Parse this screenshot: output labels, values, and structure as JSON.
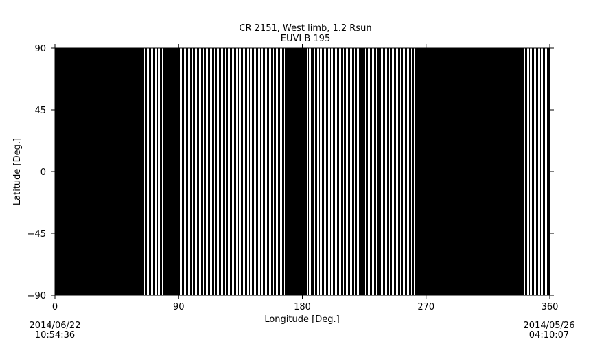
{
  "chart_data": {
    "type": "heatmap",
    "title": "CR 2151, West limb, 1.2 Rsun",
    "subtitle": "EUVI B 195",
    "xlabel": "Longitude [Deg.]",
    "ylabel": "Latitude [Deg.]",
    "xlim": [
      0,
      360
    ],
    "ylim": [
      -90,
      90
    ],
    "xticks": [
      "0",
      "90",
      "180",
      "270",
      "360"
    ],
    "xtick_values": [
      0,
      90,
      180,
      270,
      360
    ],
    "yticks": [
      "90",
      "45",
      "0",
      "−45",
      "−90"
    ],
    "ytick_values": [
      90,
      45,
      0,
      -45,
      -90
    ],
    "background_color": "#000000",
    "stripe_color": "#ffffff",
    "striped_longitude_bands": [
      [
        65,
        78
      ],
      [
        91,
        168
      ],
      [
        183.5,
        187
      ],
      [
        188.5,
        222
      ],
      [
        224.5,
        234.5
      ],
      [
        237,
        262
      ],
      [
        341.5,
        358
      ]
    ],
    "start_date": "2014/06/22",
    "start_time": "10:54:36",
    "end_date": "2014/05/26",
    "end_time": "04:10:07"
  }
}
